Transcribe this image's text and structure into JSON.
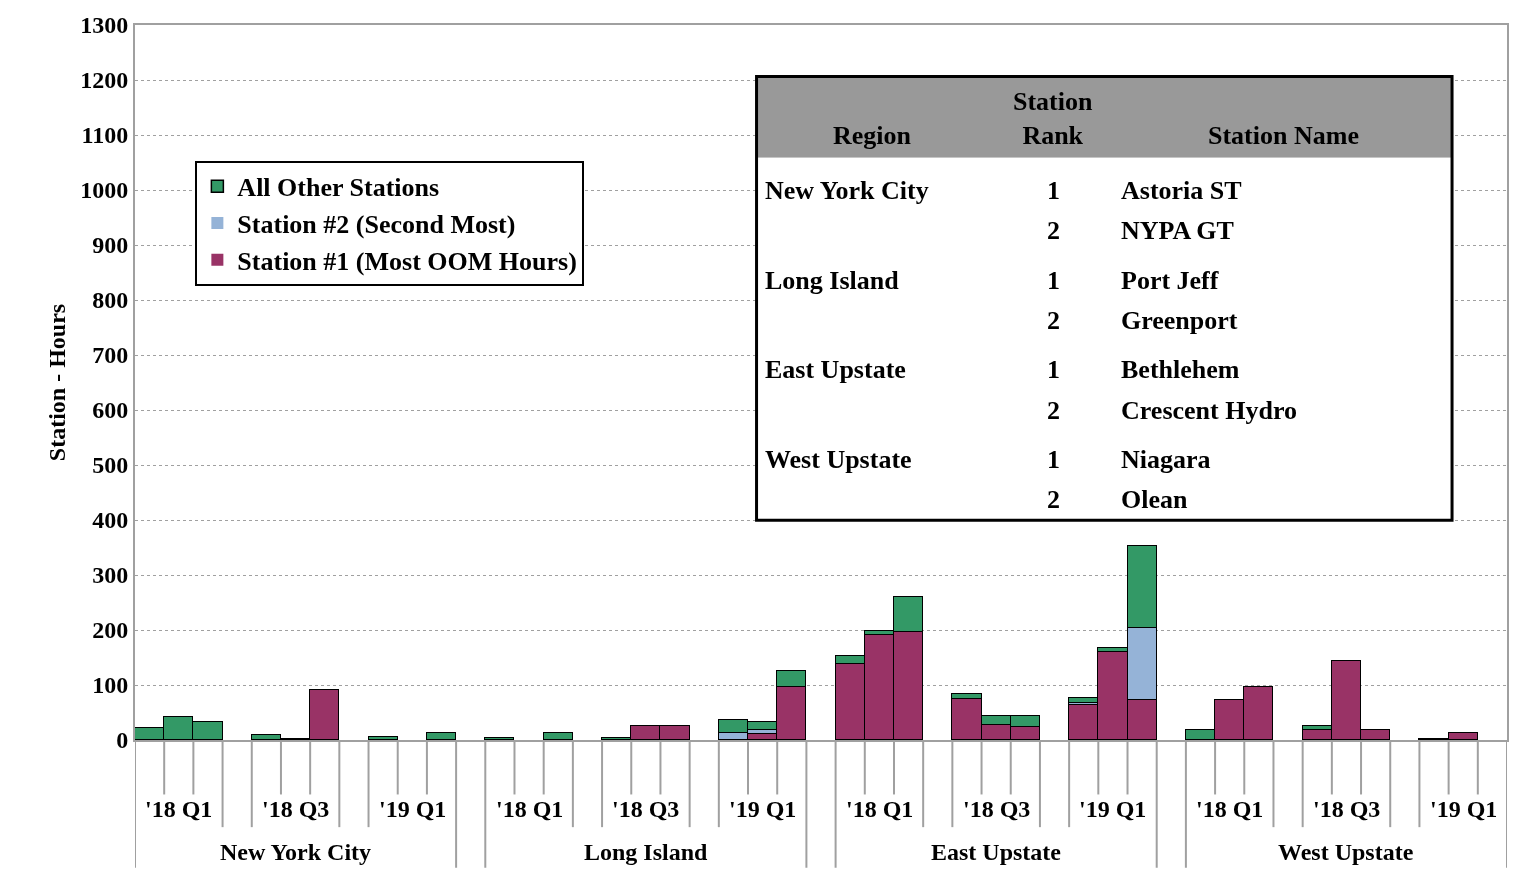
{
  "chart_data": [
    {
      "type": "bar",
      "stacked": true,
      "ylabel": "Station - Hours",
      "categories": [
        null,
        null,
        null,
        null,
        null,
        null,
        null,
        null,
        null,
        null,
        null,
        null,
        null,
        null,
        null,
        null,
        null,
        null,
        null,
        null,
        null,
        null,
        null,
        null,
        null,
        null,
        null,
        null,
        null,
        null,
        null,
        null,
        null,
        null,
        null,
        null,
        null,
        null,
        null,
        null,
        null,
        null,
        null,
        null,
        null,
        null,
        null
      ],
      "series": [
        {
          "name": "Station #1 (Most OOM Hours)",
          "color": "#993366",
          "values": [
            0,
            0,
            0,
            null,
            0,
            0,
            91,
            null,
            0,
            0,
            0,
            null,
            0,
            0,
            0,
            null,
            0,
            25,
            25,
            null,
            0,
            11,
            97,
            null,
            139,
            191,
            197,
            null,
            75,
            28,
            23,
            null,
            63,
            160,
            72,
            null,
            0,
            73,
            97,
            null,
            18,
            143,
            19,
            null,
            0,
            13,
            0
          ]
        },
        {
          "name": "Station #2 (Second Most)",
          "color": "#95b3d7",
          "values": [
            0,
            0,
            0,
            null,
            0,
            0,
            0,
            null,
            0,
            0,
            0,
            null,
            0,
            0,
            0,
            null,
            0,
            0,
            0,
            null,
            12,
            7,
            0,
            null,
            0,
            0,
            0,
            null,
            0,
            0,
            0,
            null,
            5,
            0,
            131,
            null,
            0,
            0,
            0,
            null,
            0,
            0,
            0,
            null,
            0,
            0,
            0
          ]
        },
        {
          "name": "All Other Stations",
          "color": "#339966",
          "values": [
            21,
            41,
            32,
            null,
            10,
            2,
            0,
            null,
            5,
            0,
            12,
            null,
            4,
            0,
            12,
            null,
            4,
            0,
            0,
            null,
            25,
            14,
            28,
            null,
            13,
            7,
            63,
            null,
            8,
            16,
            21,
            null,
            8,
            7,
            150,
            null,
            19,
            0,
            0,
            null,
            7,
            0,
            0,
            null,
            1,
            0,
            0
          ]
        }
      ],
      "ylim": [
        0,
        1300
      ],
      "yticks": [
        0,
        100,
        200,
        300,
        400,
        500,
        600,
        700,
        800,
        900,
        1000,
        1100,
        1200,
        1300
      ],
      "grid": "y",
      "legend": "top left",
      "tick_labels": "y",
      "annotations": [
        "'18 Q1",
        "'18 Q3",
        "'19 Q1",
        "'18 Q1",
        "'18 Q3",
        "'19 Q1",
        "'18 Q1",
        "'18 Q3",
        "'19 Q1",
        "'18 Q1",
        "'18 Q3",
        "'19 Q1",
        "New York City",
        "Long Island",
        "East Upstate",
        "West Upstate"
      ]
    },
    {
      "type": "other",
      "categories": [
        "Region",
        "Station Rank",
        "Station Name"
      ],
      "annotations": [
        "New York City",
        "1",
        "Astoria ST",
        null,
        "2",
        "NYPA GT",
        "Long Island",
        "1",
        "Port Jeff",
        null,
        "2",
        "Greenport",
        "East Upstate",
        "1",
        "Bethlehem",
        null,
        "2",
        "Crescent Hydro",
        "West Upstate",
        "1",
        "Niagara",
        null,
        "2",
        "Olean"
      ]
    }
  ]
}
